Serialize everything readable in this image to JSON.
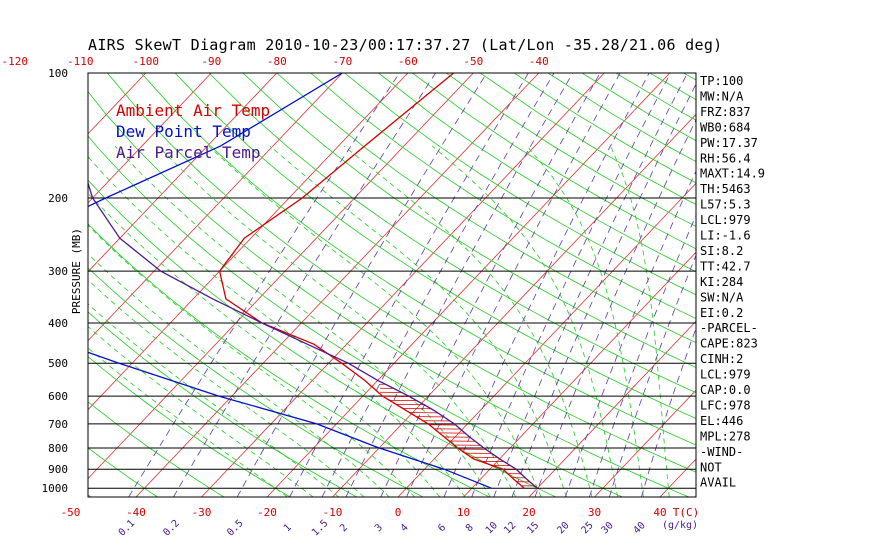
{
  "title": "AIRS SkewT Diagram 2010-10-23/00:17:37.27 (Lat/Lon -35.28/21.06 deg)",
  "colors": {
    "ambient": "#d40000",
    "dewpoint": "#0010c8",
    "parcel": "#4a1a8c",
    "isotherm": "#e03030",
    "dry_adiabat": "#22cc22",
    "mixing_ratio": "#5a3aa8",
    "isobar": "#000000"
  },
  "chart_data": {
    "type": "skewt",
    "ylabel": "PRESSURE (MB)",
    "xlabel": "T(C)",
    "mixing_ratio_unit": "(g/kg)",
    "pressure_levels": [
      100,
      200,
      300,
      400,
      500,
      600,
      700,
      800,
      900,
      1000
    ],
    "pressure_labels": [
      "100",
      "200",
      "300",
      "400",
      "500",
      "600",
      "700",
      "800",
      "900",
      "1000"
    ],
    "top_temp_ticks": [
      "-120",
      "-110",
      "-100",
      "-90",
      "-80",
      "-70",
      "-60",
      "-50",
      "-40"
    ],
    "bottom_temp_ticks": [
      "-50",
      "-40",
      "-30",
      "-20",
      "-10",
      "0",
      "10",
      "20",
      "30",
      "40"
    ],
    "mixing_ratio_labels": [
      "0.1",
      "0.2",
      "0.5",
      "1",
      "1.5",
      "2",
      "3",
      "4",
      "6",
      "8",
      "10",
      "12",
      "15",
      "20",
      "25",
      "30",
      "40"
    ],
    "legend": [
      "Ambient Air Temp",
      "Dew Point Temp",
      "Air Parcel Temp"
    ],
    "series": [
      {
        "name": "Ambient Air Temp",
        "points": [
          [
            100,
            -53
          ],
          [
            150,
            -56
          ],
          [
            200,
            -58
          ],
          [
            250,
            -61
          ],
          [
            300,
            -60
          ],
          [
            350,
            -55
          ],
          [
            400,
            -46
          ],
          [
            450,
            -35
          ],
          [
            500,
            -28
          ],
          [
            550,
            -22
          ],
          [
            600,
            -17
          ],
          [
            700,
            -6
          ],
          [
            800,
            2
          ],
          [
            850,
            6
          ],
          [
            900,
            12
          ],
          [
            950,
            15
          ],
          [
            1000,
            18
          ]
        ]
      },
      {
        "name": "Dew Point Temp",
        "points": [
          [
            100,
            -70
          ],
          [
            150,
            -78
          ],
          [
            200,
            -88
          ],
          [
            250,
            -95
          ],
          [
            300,
            -100
          ],
          [
            350,
            -92
          ],
          [
            400,
            -84
          ],
          [
            450,
            -73
          ],
          [
            500,
            -62
          ],
          [
            600,
            -42
          ],
          [
            700,
            -23
          ],
          [
            800,
            -10
          ],
          [
            900,
            3
          ],
          [
            1000,
            13
          ]
        ]
      },
      {
        "name": "Air Parcel Temp",
        "points": [
          [
            100,
            -109
          ],
          [
            150,
            -100
          ],
          [
            200,
            -90
          ],
          [
            250,
            -80
          ],
          [
            300,
            -69
          ],
          [
            350,
            -57
          ],
          [
            400,
            -46
          ],
          [
            450,
            -36
          ],
          [
            500,
            -27
          ],
          [
            550,
            -20
          ],
          [
            600,
            -13
          ],
          [
            650,
            -7
          ],
          [
            700,
            -2
          ],
          [
            750,
            2
          ],
          [
            800,
            6
          ],
          [
            850,
            10
          ],
          [
            900,
            14
          ],
          [
            950,
            17
          ],
          [
            1000,
            20
          ]
        ]
      }
    ]
  },
  "indices": [
    "TP:100",
    "MW:N/A",
    "FRZ:837",
    "WB0:684",
    "PW:17.37",
    "RH:56.4",
    "MAXT:14.9",
    "TH:5463",
    "L57:5.3",
    "LCL:979",
    "LI:-1.6",
    "SI:8.2",
    "TT:42.7",
    "KI:284",
    "SW:N/A",
    "EI:0.2",
    "-PARCEL-",
    "CAPE:823",
    "CINH:2",
    "LCL:979",
    "CAP:0.0",
    "LFC:978",
    "EL:446",
    "MPL:278",
    "-WIND-",
    "NOT",
    "AVAIL"
  ]
}
